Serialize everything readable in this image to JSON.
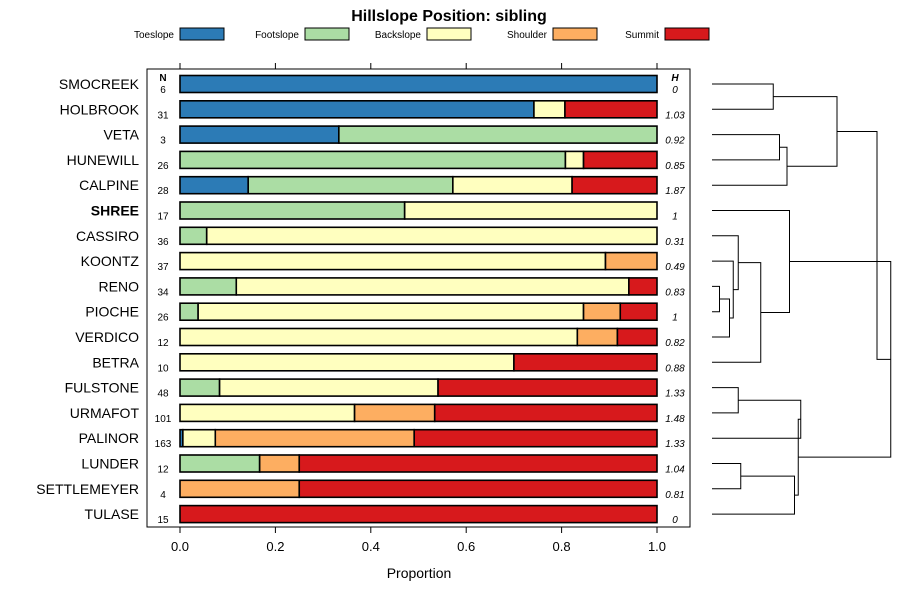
{
  "chart_data": {
    "type": "bar",
    "orientation": "horizontal",
    "stacked": true,
    "title": "Hillslope Position: sibling",
    "xlabel": "Proportion",
    "xlim": [
      0,
      1
    ],
    "xticks": [
      "0.0",
      "0.2",
      "0.4",
      "0.6",
      "0.8",
      "1.0"
    ],
    "n_header": "N",
    "h_header": "H",
    "legend_position": "top",
    "series": [
      {
        "name": "Toeslope",
        "color": "#2c7bb6"
      },
      {
        "name": "Footslope",
        "color": "#abdda4"
      },
      {
        "name": "Backslope",
        "color": "#ffffbf"
      },
      {
        "name": "Shoulder",
        "color": "#fdae61"
      },
      {
        "name": "Summit",
        "color": "#d7191c"
      }
    ],
    "rows": [
      {
        "label": "SMOCREEK",
        "bold": false,
        "n": "6",
        "h": "0",
        "values": [
          1.0,
          0,
          0,
          0,
          0
        ]
      },
      {
        "label": "HOLBROOK",
        "bold": false,
        "n": "31",
        "h": "1.03",
        "values": [
          0.742,
          0,
          0.065,
          0,
          0.193
        ]
      },
      {
        "label": "VETA",
        "bold": false,
        "n": "3",
        "h": "0.92",
        "values": [
          0.333,
          0.667,
          0,
          0,
          0
        ]
      },
      {
        "label": "HUNEWILL",
        "bold": false,
        "n": "26",
        "h": "0.85",
        "values": [
          0,
          0.808,
          0.038,
          0,
          0.154
        ]
      },
      {
        "label": "CALPINE",
        "bold": false,
        "n": "28",
        "h": "1.87",
        "values": [
          0.143,
          0.429,
          0.25,
          0,
          0.178
        ]
      },
      {
        "label": "SHREE",
        "bold": true,
        "n": "17",
        "h": "1",
        "values": [
          0,
          0.471,
          0.529,
          0,
          0
        ]
      },
      {
        "label": "CASSIRO",
        "bold": false,
        "n": "36",
        "h": "0.31",
        "values": [
          0,
          0.056,
          0.944,
          0,
          0
        ]
      },
      {
        "label": "KOONTZ",
        "bold": false,
        "n": "37",
        "h": "0.49",
        "values": [
          0,
          0,
          0.892,
          0.108,
          0
        ]
      },
      {
        "label": "RENO",
        "bold": false,
        "n": "34",
        "h": "0.83",
        "values": [
          0,
          0.118,
          0.823,
          0,
          0.059
        ]
      },
      {
        "label": "PIOCHE",
        "bold": false,
        "n": "26",
        "h": "1",
        "values": [
          0,
          0.038,
          0.808,
          0.077,
          0.077
        ]
      },
      {
        "label": "VERDICO",
        "bold": false,
        "n": "12",
        "h": "0.82",
        "values": [
          0,
          0,
          0.833,
          0.084,
          0.083
        ]
      },
      {
        "label": "BETRA",
        "bold": false,
        "n": "10",
        "h": "0.88",
        "values": [
          0,
          0,
          0.7,
          0,
          0.3
        ]
      },
      {
        "label": "FULSTONE",
        "bold": false,
        "n": "48",
        "h": "1.33",
        "values": [
          0,
          0.083,
          0.458,
          0,
          0.459
        ]
      },
      {
        "label": "URMAFOT",
        "bold": false,
        "n": "101",
        "h": "1.48",
        "values": [
          0,
          0,
          0.366,
          0.168,
          0.466
        ]
      },
      {
        "label": "PALINOR",
        "bold": false,
        "n": "163",
        "h": "1.33",
        "values": [
          0.006,
          0,
          0.068,
          0.417,
          0.509
        ]
      },
      {
        "label": "LUNDER",
        "bold": false,
        "n": "12",
        "h": "1.04",
        "values": [
          0,
          0.167,
          0,
          0.083,
          0.75
        ]
      },
      {
        "label": "SETTLEMEYER",
        "bold": false,
        "n": "4",
        "h": "0.81",
        "values": [
          0,
          0,
          0,
          0.25,
          0.75
        ]
      },
      {
        "label": "TULASE",
        "bold": false,
        "n": "15",
        "h": "0",
        "values": [
          0,
          0,
          0,
          0,
          1.0
        ]
      }
    ],
    "dendrogram": {
      "description": "hierarchical clustering of row profiles drawn to the right of the plot",
      "merges": [
        {
          "a": 0,
          "b": 1,
          "height": 0.49
        },
        {
          "a": 2,
          "b": 3,
          "height": 0.54
        },
        {
          "a": "c1",
          "b": 4,
          "height": 0.6
        },
        {
          "a": "c0",
          "b": "c2",
          "height": 1.0
        },
        {
          "a": 8,
          "b": 9,
          "height": 0.06
        },
        {
          "a": "c4",
          "b": 10,
          "height": 0.14
        },
        {
          "a": 7,
          "b": "c5",
          "height": 0.17
        },
        {
          "a": 6,
          "b": "c6",
          "height": 0.21
        },
        {
          "a": "c7",
          "b": 11,
          "height": 0.39
        },
        {
          "a": 5,
          "b": "c8",
          "height": 0.62
        },
        {
          "a": 12,
          "b": 13,
          "height": 0.21
        },
        {
          "a": "c10",
          "b": 14,
          "height": 0.71
        },
        {
          "a": 15,
          "b": 16,
          "height": 0.23
        },
        {
          "a": "c12",
          "b": 17,
          "height": 0.66
        },
        {
          "a": "c11",
          "b": "c13",
          "height": 0.69
        },
        {
          "a": "c9",
          "b": "c14",
          "height": 1.43
        },
        {
          "a": "c3",
          "b": "c15",
          "height": 1.32
        }
      ]
    }
  }
}
